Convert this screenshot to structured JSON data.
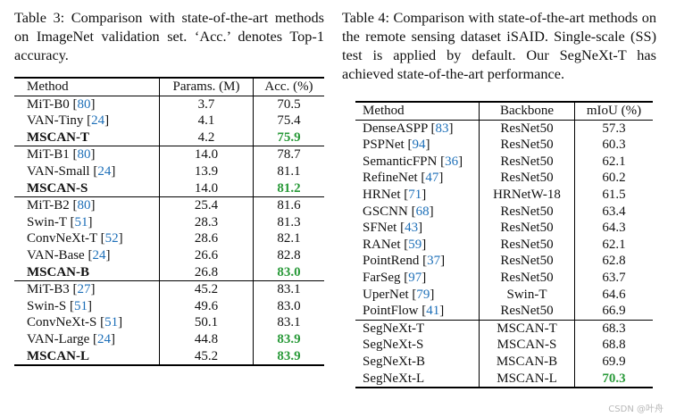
{
  "table3": {
    "caption": "Table 3:  Comparison with state-of-the-art methods on ImageNet validation set. ‘Acc.’ denotes Top-1 accuracy.",
    "headers": [
      "Method",
      "Params. (M)",
      "Acc. (%)"
    ],
    "groups": [
      [
        {
          "method": "MiT-B0",
          "cite": "80",
          "params": "3.7",
          "acc": "70.5"
        },
        {
          "method": "VAN-Tiny",
          "cite": "24",
          "params": "4.1",
          "acc": "75.4"
        },
        {
          "method": "MSCAN-T",
          "params": "4.2",
          "acc": "75.9",
          "ours": true
        }
      ],
      [
        {
          "method": "MiT-B1",
          "cite": "80",
          "params": "14.0",
          "acc": "78.7"
        },
        {
          "method": "VAN-Small",
          "cite": "24",
          "params": "13.9",
          "acc": "81.1"
        },
        {
          "method": "MSCAN-S",
          "params": "14.0",
          "acc": "81.2",
          "ours": true
        }
      ],
      [
        {
          "method": "MiT-B2",
          "cite": "80",
          "params": "25.4",
          "acc": "81.6"
        },
        {
          "method": "Swin-T",
          "cite": "51",
          "params": "28.3",
          "acc": "81.3"
        },
        {
          "method": "ConvNeXt-T",
          "cite": "52",
          "params": "28.6",
          "acc": "82.1"
        },
        {
          "method": "VAN-Base",
          "cite": "24",
          "params": "26.6",
          "acc": "82.8"
        },
        {
          "method": "MSCAN-B",
          "params": "26.8",
          "acc": "83.0",
          "ours": true
        }
      ],
      [
        {
          "method": "MiT-B3",
          "cite": "27",
          "params": "45.2",
          "acc": "83.1"
        },
        {
          "method": "Swin-S",
          "cite": "51",
          "params": "49.6",
          "acc": "83.0"
        },
        {
          "method": "ConvNeXt-S",
          "cite": "51",
          "params": "50.1",
          "acc": "83.1"
        },
        {
          "method": "VAN-Large",
          "cite": "24",
          "params": "44.8",
          "acc": "83.9",
          "best": true
        },
        {
          "method": "MSCAN-L",
          "params": "45.2",
          "acc": "83.9",
          "ours": true
        }
      ]
    ]
  },
  "table4": {
    "caption": "Table 4: Comparison with state-of-the-art methods on the remote sensing dataset iSAID. Single-scale (SS) test is applied by default. Our SegNeXt-T has achieved state-of-the-art performance.",
    "headers": [
      "Method",
      "Backbone",
      "mIoU (%)"
    ],
    "groups": [
      [
        {
          "method": "DenseASPP",
          "cite": "83",
          "backbone": "ResNet50",
          "miou": "57.3"
        },
        {
          "method": "PSPNet",
          "cite": "94",
          "backbone": "ResNet50",
          "miou": "60.3"
        },
        {
          "method": "SemanticFPN",
          "cite": "36",
          "backbone": "ResNet50",
          "miou": "62.1"
        },
        {
          "method": "RefineNet",
          "cite": "47",
          "backbone": "ResNet50",
          "miou": "60.2"
        },
        {
          "method": "HRNet",
          "cite": "71",
          "backbone": "HRNetW-18",
          "miou": "61.5"
        },
        {
          "method": "GSCNN",
          "cite": "68",
          "backbone": "ResNet50",
          "miou": "63.4"
        },
        {
          "method": "SFNet",
          "cite": "43",
          "backbone": "ResNet50",
          "miou": "64.3"
        },
        {
          "method": "RANet",
          "cite": "59",
          "backbone": "ResNet50",
          "miou": "62.1"
        },
        {
          "method": "PointRend",
          "cite": "37",
          "backbone": "ResNet50",
          "miou": "62.8"
        },
        {
          "method": "FarSeg",
          "cite": "97",
          "backbone": "ResNet50",
          "miou": "63.7"
        },
        {
          "method": "UperNet",
          "cite": "79",
          "backbone": "Swin-T",
          "miou": "64.6"
        },
        {
          "method": "PointFlow",
          "cite": "41",
          "backbone": "ResNet50",
          "miou": "66.9"
        }
      ],
      [
        {
          "method": "SegNeXt-T",
          "backbone": "MSCAN-T",
          "miou": "68.3"
        },
        {
          "method": "SegNeXt-S",
          "backbone": "MSCAN-S",
          "miou": "68.8"
        },
        {
          "method": "SegNeXt-B",
          "backbone": "MSCAN-B",
          "miou": "69.9"
        },
        {
          "method": "SegNeXt-L",
          "backbone": "MSCAN-L",
          "miou": "70.3",
          "best": true
        }
      ]
    ]
  },
  "watermark": "CSDN @叶舟",
  "colors": {
    "citation": "#1d6fb8",
    "best": "#2a9a3a"
  }
}
